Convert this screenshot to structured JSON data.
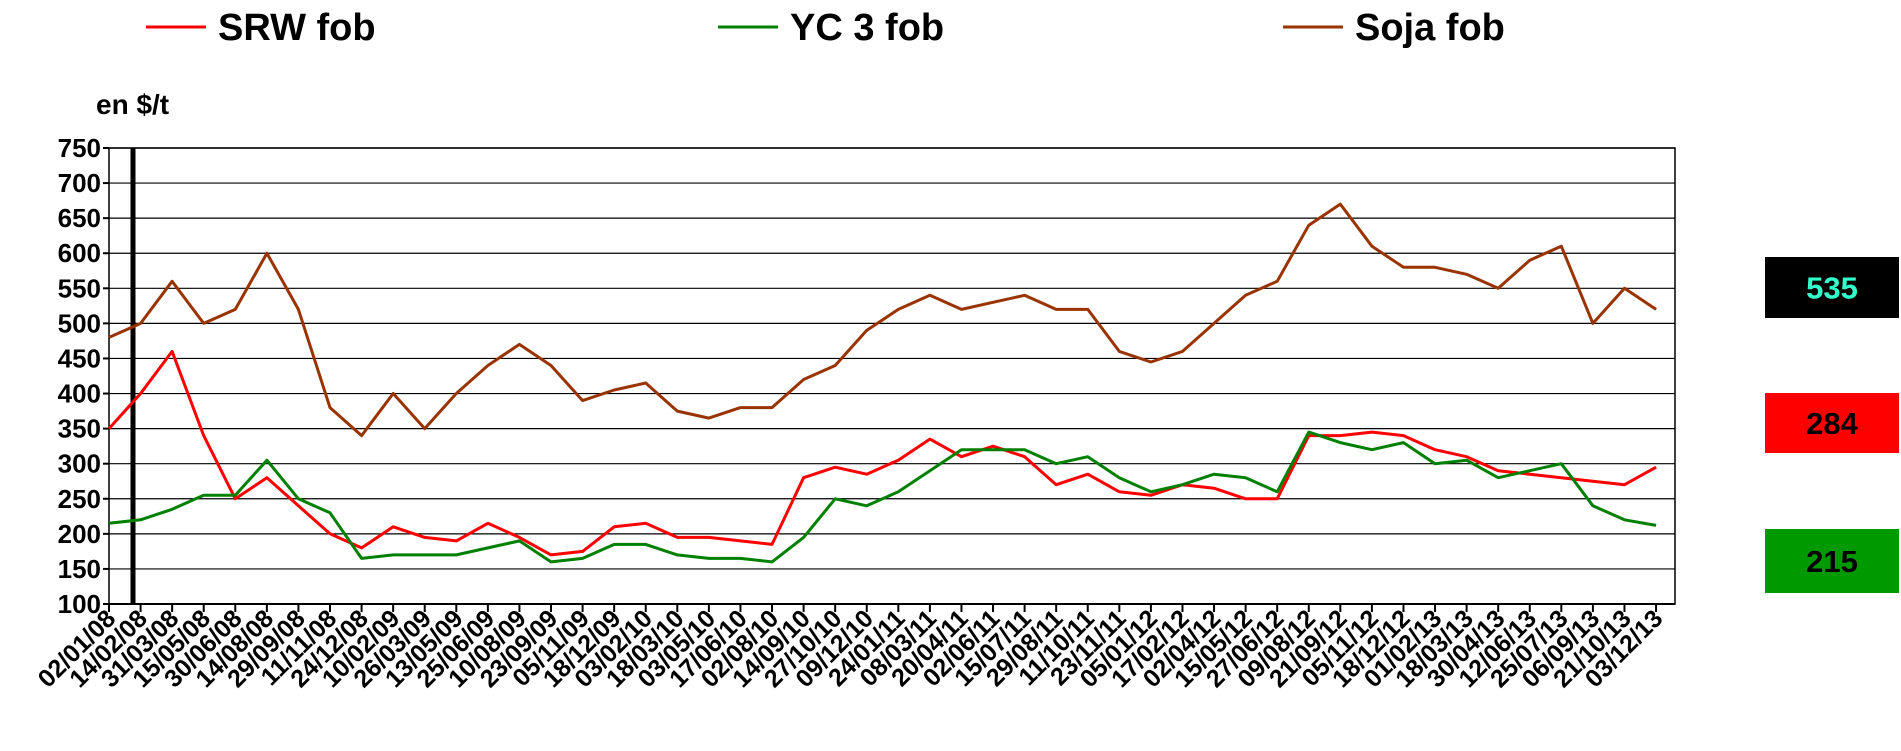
{
  "chart_data": {
    "type": "line",
    "y_axis_label": "en $/t",
    "categories": [
      "02/01/08",
      "14/02/08",
      "31/03/08",
      "15/05/08",
      "30/06/08",
      "14/08/08",
      "29/09/08",
      "11/11/08",
      "24/12/08",
      "10/02/09",
      "26/03/09",
      "13/05/09",
      "25/06/09",
      "10/08/09",
      "23/09/09",
      "05/11/09",
      "18/12/09",
      "03/02/10",
      "18/03/10",
      "03/05/10",
      "17/06/10",
      "02/08/10",
      "14/09/10",
      "27/10/10",
      "09/12/10",
      "24/01/11",
      "08/03/11",
      "20/04/11",
      "02/06/11",
      "15/07/11",
      "29/08/11",
      "11/10/11",
      "23/11/11",
      "05/01/12",
      "17/02/12",
      "02/04/12",
      "15/05/12",
      "27/06/12",
      "09/08/12",
      "21/09/12",
      "05/11/12",
      "18/12/12",
      "01/02/13",
      "18/03/13",
      "30/04/13",
      "12/06/13",
      "25/07/13",
      "06/09/13",
      "21/10/13",
      "03/12/13"
    ],
    "series": [
      {
        "name": "SRW fob",
        "color": "#ff0000",
        "values": [
          350,
          400,
          460,
          340,
          250,
          280,
          240,
          200,
          180,
          210,
          195,
          190,
          215,
          195,
          170,
          175,
          210,
          215,
          195,
          195,
          190,
          185,
          280,
          295,
          285,
          305,
          335,
          310,
          325,
          310,
          270,
          285,
          260,
          255,
          270,
          265,
          250,
          250,
          340,
          340,
          345,
          340,
          320,
          310,
          290,
          285,
          280,
          275,
          270,
          295
        ]
      },
      {
        "name": "YC 3 fob",
        "color": "#008000",
        "values": [
          215,
          220,
          235,
          255,
          255,
          305,
          250,
          230,
          165,
          170,
          170,
          170,
          180,
          190,
          160,
          165,
          185,
          185,
          170,
          165,
          165,
          160,
          195,
          250,
          240,
          260,
          290,
          320,
          320,
          320,
          300,
          310,
          280,
          260,
          270,
          285,
          280,
          260,
          345,
          330,
          320,
          330,
          300,
          305,
          280,
          290,
          300,
          240,
          220,
          212
        ]
      },
      {
        "name": "Soja fob",
        "color": "#993300",
        "values": [
          480,
          500,
          560,
          500,
          520,
          600,
          520,
          380,
          340,
          400,
          350,
          400,
          440,
          470,
          440,
          390,
          405,
          415,
          375,
          365,
          380,
          380,
          420,
          440,
          490,
          520,
          540,
          520,
          530,
          540,
          520,
          520,
          460,
          445,
          460,
          500,
          540,
          560,
          640,
          670,
          610,
          580,
          580,
          570,
          550,
          590,
          610,
          500,
          550,
          520
        ]
      }
    ],
    "ylim": [
      100,
      750
    ],
    "yticks": [
      100,
      150,
      200,
      250,
      300,
      350,
      400,
      450,
      500,
      550,
      600,
      650,
      700,
      750
    ],
    "grid": true,
    "end_boxes": [
      {
        "value": 535,
        "color": "#000000",
        "text_color": "#33ffcc"
      },
      {
        "value": 284,
        "color": "#ff0000",
        "text_color": "#000000"
      },
      {
        "value": 215,
        "color": "#009900",
        "text_color": "#000000"
      }
    ]
  }
}
